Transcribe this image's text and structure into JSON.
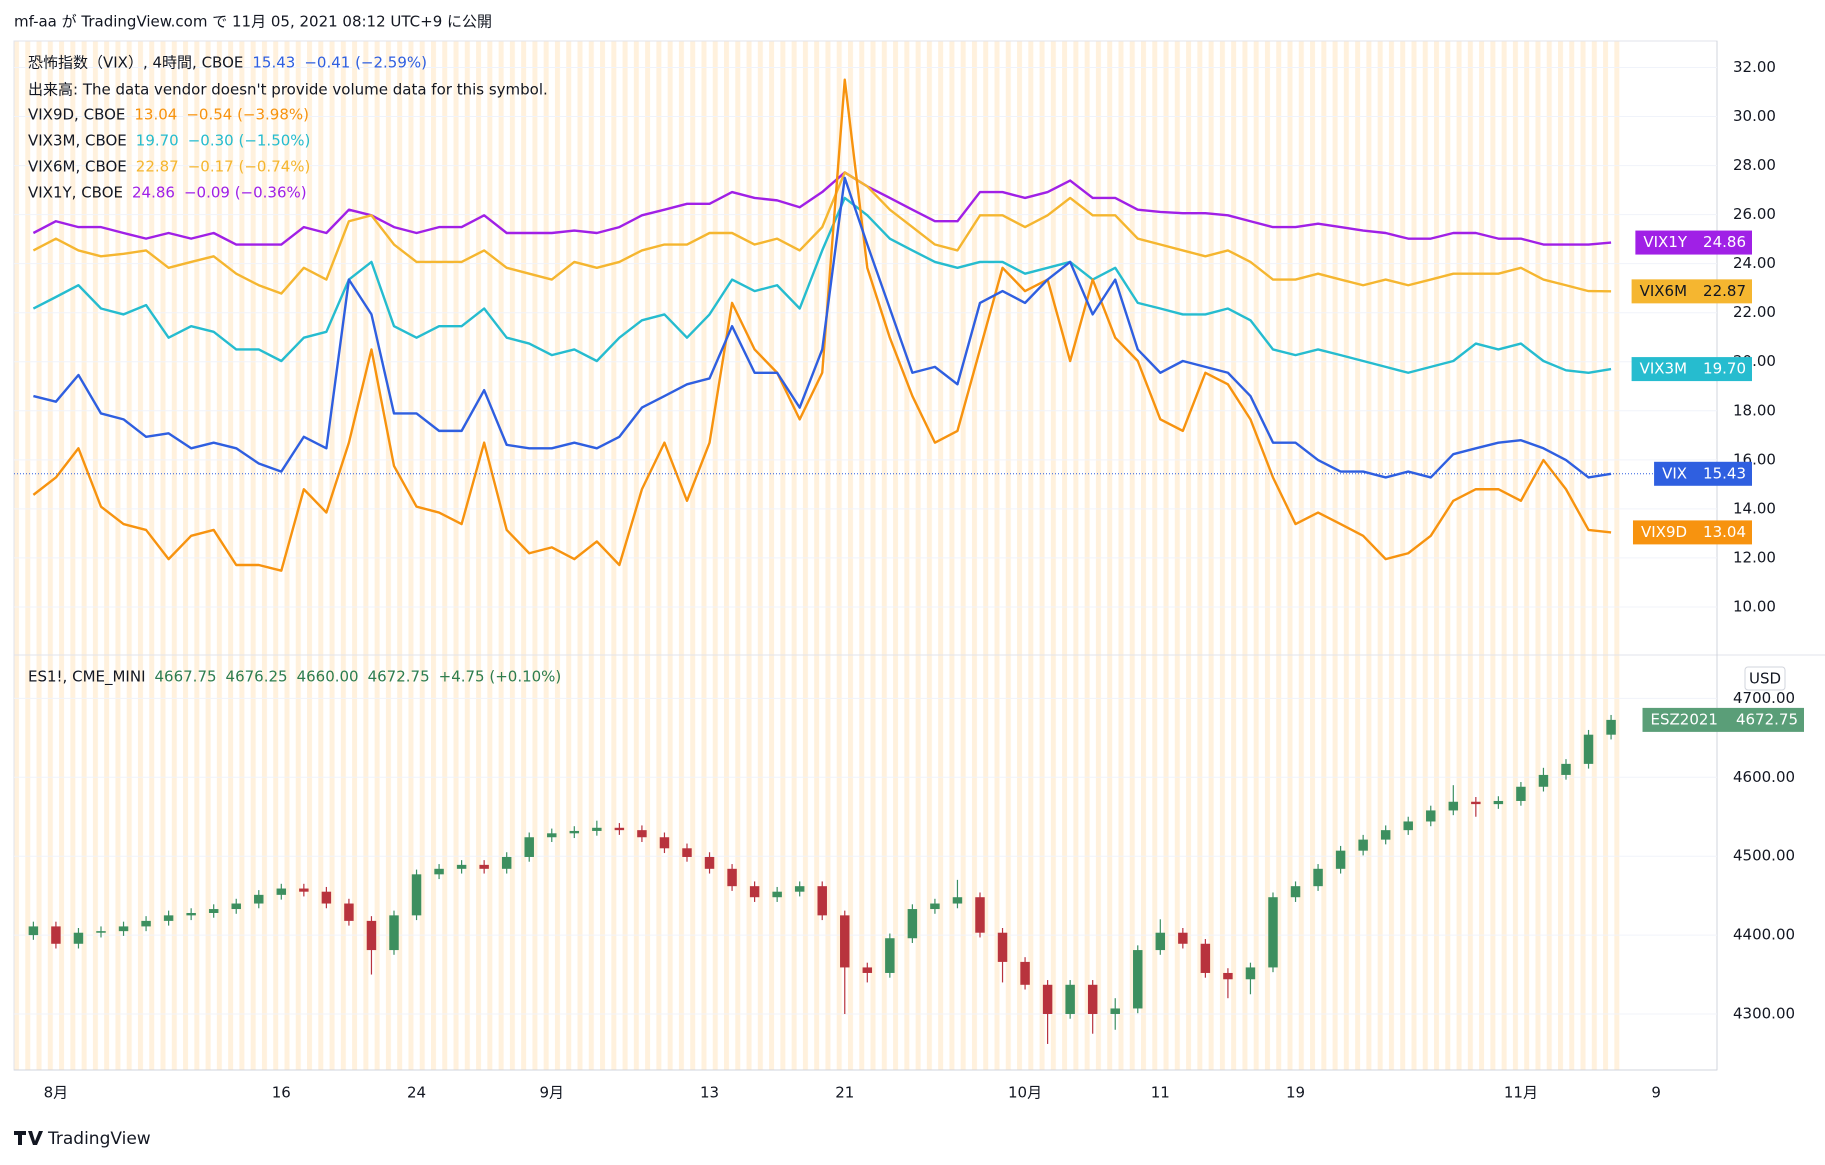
{
  "header": {
    "published": "mf-aa が TradingView.com で 11月 05, 2021 08:12 UTC+9 に公開"
  },
  "footer": {
    "brand": "TradingView"
  },
  "chart_data": [
    {
      "type": "line",
      "volume_note": "出来高: The data vendor doesn't provide volume data for this symbol.",
      "x": [
        -1,
        0,
        1,
        2,
        3,
        4,
        5,
        6,
        7,
        8,
        9,
        10,
        11,
        12,
        13,
        14,
        15,
        16,
        17,
        18,
        19,
        20,
        21,
        22,
        23,
        24,
        25,
        26,
        27,
        28,
        29,
        30,
        31,
        32,
        33,
        34,
        35,
        36,
        37,
        38,
        39,
        40,
        41,
        42,
        43,
        44,
        45,
        46,
        47,
        48,
        49,
        50,
        51,
        52,
        53,
        54,
        55,
        56,
        57,
        58,
        59,
        60,
        61,
        62,
        63,
        64,
        65,
        66,
        67,
        68,
        69
      ],
      "xlim": [
        -1.86,
        73.7
      ],
      "xticks": [
        {
          "value": 0,
          "label": "8月"
        },
        {
          "value": 10,
          "label": "16"
        },
        {
          "value": 16,
          "label": "24"
        },
        {
          "value": 22,
          "label": "9月"
        },
        {
          "value": 29,
          "label": "13"
        },
        {
          "value": 35,
          "label": "21"
        },
        {
          "value": 43,
          "label": "10月"
        },
        {
          "value": 49,
          "label": "11"
        },
        {
          "value": 55,
          "label": "19"
        },
        {
          "value": 65,
          "label": "11月"
        },
        {
          "value": 71,
          "label": "9"
        }
      ],
      "ylim": [
        8.04,
        33.08
      ],
      "yticks": [
        {
          "value": 10,
          "label": "10.00"
        },
        {
          "value": 12,
          "label": "12.00"
        },
        {
          "value": 14,
          "label": "14.00"
        },
        {
          "value": 16,
          "label": "16.00"
        },
        {
          "value": 18,
          "label": "18.00"
        },
        {
          "value": 20,
          "label": "20.00"
        },
        {
          "value": 22,
          "label": "22.00"
        },
        {
          "value": 24,
          "label": "24.00"
        },
        {
          "value": 26,
          "label": "26.00"
        },
        {
          "value": 28,
          "label": "28.00"
        },
        {
          "value": 30,
          "label": "30.00"
        },
        {
          "value": 32,
          "label": "32.00"
        }
      ],
      "grid": true,
      "series": [
        {
          "name": "恐怖指数（VIX）, 4時間, CBOE",
          "tag": "VIX",
          "color": "#2f5fe0",
          "price_line": true,
          "last_label": "15.43",
          "change_label": "−0.41 (−2.59%)",
          "values": [
            18.6,
            18.37,
            19.46,
            17.89,
            17.65,
            16.94,
            17.08,
            16.47,
            16.7,
            16.47,
            15.85,
            15.52,
            16.94,
            16.47,
            23.35,
            21.93,
            17.89,
            17.89,
            17.18,
            17.18,
            18.84,
            16.61,
            16.47,
            16.47,
            16.7,
            16.47,
            16.94,
            18.13,
            18.6,
            19.08,
            19.32,
            21.45,
            19.55,
            19.55,
            18.13,
            20.5,
            27.5,
            24.78,
            22.17,
            19.55,
            19.79,
            19.08,
            22.4,
            22.88,
            22.4,
            23.35,
            24.07,
            21.93,
            23.35,
            20.5,
            19.55,
            20.03,
            19.79,
            19.55,
            18.6,
            16.7,
            16.7,
            15.99,
            15.52,
            15.52,
            15.28,
            15.52,
            15.28,
            16.23,
            16.47,
            16.7,
            16.8,
            16.47,
            15.99,
            15.28,
            15.43
          ]
        },
        {
          "name": "VIX9D, CBOE",
          "tag": "VIX9D",
          "color": "#f7930f",
          "last_label": "13.04",
          "change_label": "−0.54 (−3.98%)",
          "values": [
            14.57,
            15.28,
            16.47,
            14.09,
            13.38,
            13.14,
            11.95,
            12.9,
            13.14,
            11.71,
            11.71,
            11.48,
            14.8,
            13.85,
            16.7,
            20.5,
            15.75,
            14.09,
            13.85,
            13.38,
            16.7,
            13.14,
            12.19,
            12.43,
            11.95,
            12.67,
            11.71,
            14.8,
            16.7,
            14.33,
            16.7,
            22.4,
            20.5,
            19.55,
            17.65,
            19.55,
            31.5,
            23.83,
            20.98,
            18.6,
            16.7,
            17.18,
            20.5,
            23.83,
            22.88,
            23.35,
            20.03,
            23.35,
            20.98,
            20.03,
            17.65,
            17.18,
            19.55,
            19.08,
            17.65,
            15.28,
            13.38,
            13.85,
            13.38,
            12.9,
            11.95,
            12.19,
            12.9,
            14.33,
            14.8,
            14.8,
            14.33,
            15.99,
            14.8,
            13.14,
            13.04
          ]
        },
        {
          "name": "VIX3M, CBOE",
          "tag": "VIX3M",
          "color": "#26bccf",
          "last_label": "19.70",
          "change_label": "−0.30 (−1.50%)",
          "values": [
            22.17,
            22.64,
            23.12,
            22.17,
            21.93,
            22.31,
            20.98,
            21.45,
            21.22,
            20.5,
            20.5,
            20.03,
            20.98,
            21.22,
            23.35,
            24.07,
            21.45,
            20.98,
            21.45,
            21.45,
            22.17,
            20.98,
            20.74,
            20.27,
            20.5,
            20.03,
            20.98,
            21.69,
            21.93,
            20.98,
            21.93,
            23.35,
            22.88,
            23.12,
            22.17,
            24.54,
            26.68,
            25.97,
            25.02,
            24.54,
            24.07,
            23.83,
            24.07,
            24.07,
            23.59,
            23.83,
            24.07,
            23.35,
            23.83,
            22.4,
            22.17,
            21.93,
            21.93,
            22.17,
            21.69,
            20.5,
            20.27,
            20.5,
            20.27,
            20.03,
            19.79,
            19.55,
            19.79,
            20.03,
            20.74,
            20.5,
            20.74,
            20.03,
            19.65,
            19.55,
            19.7
          ]
        },
        {
          "name": "VIX6M, CBOE",
          "tag": "VIX6M",
          "color": "#f5b630",
          "last_label": "22.87",
          "change_label": "−0.17 (−0.74%)",
          "values": [
            24.54,
            25.02,
            24.54,
            24.3,
            24.4,
            24.54,
            23.83,
            24.07,
            24.3,
            23.59,
            23.12,
            22.78,
            23.83,
            23.35,
            25.73,
            25.97,
            24.78,
            24.07,
            24.07,
            24.07,
            24.54,
            23.83,
            23.59,
            23.35,
            24.07,
            23.83,
            24.07,
            24.54,
            24.78,
            24.78,
            25.25,
            25.25,
            24.78,
            25.02,
            24.54,
            25.49,
            27.72,
            27.15,
            26.2,
            25.49,
            24.78,
            24.54,
            25.97,
            25.97,
            25.49,
            25.97,
            26.68,
            25.97,
            25.97,
            25.02,
            24.78,
            24.54,
            24.3,
            24.54,
            24.07,
            23.35,
            23.35,
            23.59,
            23.35,
            23.12,
            23.35,
            23.12,
            23.35,
            23.59,
            23.59,
            23.59,
            23.83,
            23.35,
            23.12,
            22.88,
            22.87
          ]
        },
        {
          "name": "VIX1Y, CBOE",
          "tag": "VIX1Y",
          "color": "#a020e6",
          "last_label": "24.86",
          "change_label": "−0.09 (−0.36%)",
          "values": [
            25.25,
            25.73,
            25.49,
            25.49,
            25.25,
            25.02,
            25.25,
            25.02,
            25.25,
            24.78,
            24.78,
            24.78,
            25.49,
            25.25,
            26.2,
            25.97,
            25.49,
            25.25,
            25.49,
            25.49,
            25.97,
            25.25,
            25.25,
            25.25,
            25.35,
            25.25,
            25.49,
            25.97,
            26.2,
            26.44,
            26.44,
            26.92,
            26.68,
            26.58,
            26.3,
            26.92,
            27.72,
            27.15,
            26.68,
            26.2,
            25.73,
            25.73,
            26.92,
            26.92,
            26.68,
            26.92,
            27.39,
            26.68,
            26.68,
            26.2,
            26.11,
            26.06,
            26.06,
            25.97,
            25.73,
            25.49,
            25.49,
            25.63,
            25.49,
            25.35,
            25.25,
            25.02,
            25.02,
            25.25,
            25.25,
            25.02,
            25.02,
            24.78,
            24.78,
            24.78,
            24.86
          ]
        }
      ]
    },
    {
      "type": "candlestick",
      "title": "ES1!, CME_MINI",
      "ohlc_labels": [
        "4667.75",
        "4676.25",
        "4660.00",
        "4672.75"
      ],
      "change_label": "+4.75 (+0.10%)",
      "currency": "USD",
      "tag": "ESZ2021",
      "last_label": "4672.75",
      "up_color": "#3d8f5f",
      "down_color": "#b8333d",
      "label_color": "#2e7d4f",
      "x": [
        -1,
        0,
        1,
        2,
        3,
        4,
        5,
        6,
        7,
        8,
        9,
        10,
        11,
        12,
        13,
        14,
        15,
        16,
        17,
        18,
        19,
        20,
        21,
        22,
        23,
        24,
        25,
        26,
        27,
        28,
        29,
        30,
        31,
        32,
        33,
        34,
        35,
        36,
        37,
        38,
        39,
        40,
        41,
        42,
        43,
        44,
        45,
        46,
        47,
        48,
        49,
        50,
        51,
        52,
        53,
        54,
        55,
        56,
        57,
        58,
        59,
        60,
        61,
        62,
        63,
        64,
        65,
        66,
        67,
        68,
        69
      ],
      "xlim": [
        -1.86,
        73.7
      ],
      "ylim": [
        4229,
        4755
      ],
      "yticks": [
        {
          "value": 4300,
          "label": "4300.00"
        },
        {
          "value": 4400,
          "label": "4400.00"
        },
        {
          "value": 4500,
          "label": "4500.00"
        },
        {
          "value": 4600,
          "label": "4600.00"
        },
        {
          "value": 4700,
          "label": "4700.00"
        }
      ],
      "grid": true,
      "open": [
        4400,
        4411,
        4389,
        4403,
        4405,
        4411,
        4418,
        4425,
        4428,
        4433,
        4440,
        4451,
        4459,
        4455,
        4440,
        4418,
        4381,
        4425,
        4477,
        4484,
        4489,
        4484,
        4499,
        4524,
        4529,
        4532,
        4536,
        4533,
        4524,
        4510,
        4499,
        4484,
        4462,
        4448,
        4455,
        4462,
        4425,
        4359,
        4352,
        4396,
        4433,
        4440,
        4448,
        4403,
        4366,
        4337,
        4300,
        4337,
        4300,
        4307,
        4381,
        4403,
        4389,
        4352,
        4344,
        4359,
        4448,
        4462,
        4484,
        4507,
        4521,
        4533,
        4544,
        4558,
        4569,
        4566,
        4570,
        4588,
        4603,
        4617,
        4654
      ],
      "high": [
        4417,
        4417,
        4409,
        4411,
        4417,
        4424,
        4431,
        4434,
        4439,
        4446,
        4457,
        4465,
        4465,
        4461,
        4446,
        4424,
        4431,
        4483,
        4490,
        4495,
        4495,
        4505,
        4530,
        4535,
        4538,
        4545,
        4542,
        4539,
        4530,
        4516,
        4505,
        4490,
        4468,
        4461,
        4468,
        4468,
        4431,
        4365,
        4402,
        4439,
        4446,
        4470,
        4454,
        4409,
        4372,
        4343,
        4343,
        4343,
        4320,
        4387,
        4420,
        4409,
        4395,
        4358,
        4365,
        4454,
        4468,
        4490,
        4513,
        4527,
        4539,
        4550,
        4564,
        4590,
        4575,
        4576,
        4594,
        4612,
        4623,
        4660,
        4679
      ],
      "low": [
        4394,
        4383,
        4383,
        4397,
        4399,
        4405,
        4412,
        4419,
        4422,
        4427,
        4434,
        4445,
        4449,
        4434,
        4412,
        4350,
        4375,
        4419,
        4471,
        4478,
        4478,
        4478,
        4493,
        4518,
        4523,
        4526,
        4527,
        4518,
        4504,
        4493,
        4478,
        4456,
        4442,
        4442,
        4449,
        4419,
        4300,
        4340,
        4346,
        4390,
        4427,
        4434,
        4397,
        4340,
        4331,
        4262,
        4294,
        4275,
        4280,
        4301,
        4375,
        4383,
        4346,
        4320,
        4325,
        4353,
        4442,
        4456,
        4478,
        4501,
        4515,
        4527,
        4538,
        4552,
        4550,
        4560,
        4564,
        4582,
        4597,
        4611,
        4648
      ],
      "close": [
        4411,
        4389,
        4403,
        4405,
        4411,
        4418,
        4425,
        4428,
        4433,
        4440,
        4451,
        4459,
        4455,
        4440,
        4418,
        4381,
        4425,
        4477,
        4484,
        4489,
        4484,
        4499,
        4524,
        4529,
        4532,
        4536,
        4533,
        4524,
        4510,
        4499,
        4484,
        4462,
        4448,
        4455,
        4462,
        4425,
        4359,
        4352,
        4396,
        4433,
        4440,
        4448,
        4403,
        4366,
        4337,
        4300,
        4337,
        4300,
        4307,
        4381,
        4403,
        4389,
        4352,
        4344,
        4359,
        4448,
        4462,
        4484,
        4507,
        4521,
        4533,
        4544,
        4558,
        4569,
        4566,
        4570,
        4588,
        4603,
        4617,
        4654,
        4672.75
      ]
    }
  ]
}
